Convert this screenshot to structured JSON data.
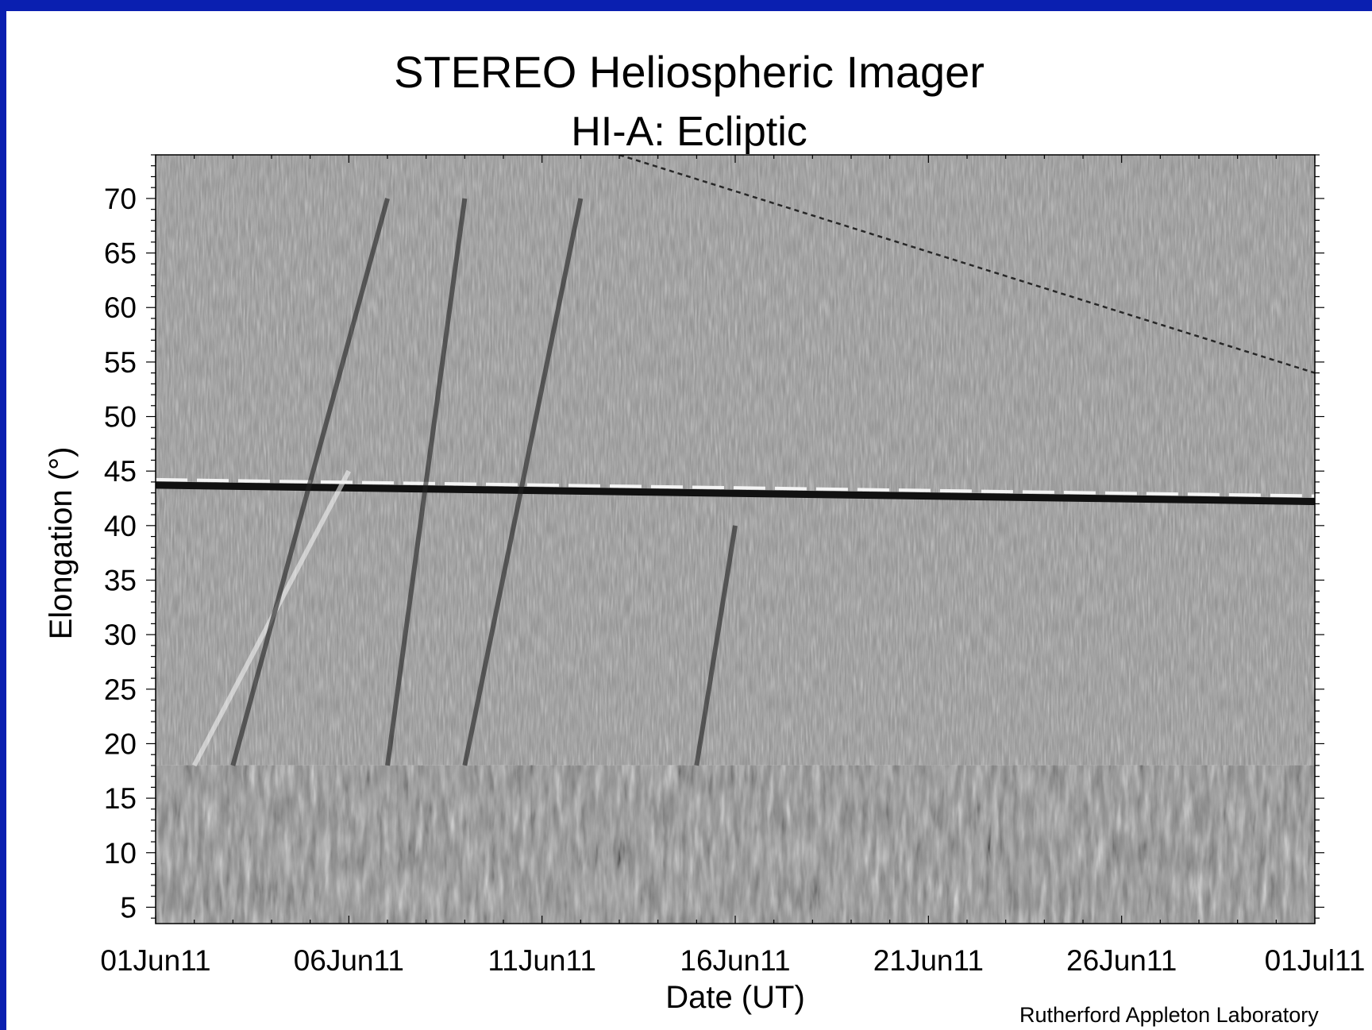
{
  "title": "STEREO Heliospheric Imager",
  "subtitle": "HI-A: Ecliptic",
  "credit": "Rutherford Appleton Laboratory",
  "colors": {
    "background": "#0a1fb0",
    "frame": "#ffffff",
    "plot_mid_gray": "#8c8c8c"
  },
  "chart_data": {
    "type": "heatmap",
    "title": "STEREO Heliospheric Imager",
    "subtitle": "HI-A: Ecliptic",
    "xlabel": "Date (UT)",
    "ylabel": "Elongation (°)",
    "x_range": [
      "01Jun11",
      "01Jul11"
    ],
    "ylim": [
      3.5,
      74
    ],
    "x_ticks": [
      "01Jun11",
      "06Jun11",
      "11Jun11",
      "16Jun11",
      "21Jun11",
      "26Jun11",
      "01Jul11"
    ],
    "y_ticks": [
      "5",
      "10",
      "15",
      "20",
      "25",
      "30",
      "35",
      "40",
      "45",
      "50",
      "55",
      "60",
      "65",
      "70"
    ],
    "colormap": "grayscale",
    "instrument_boundary_elongation": 18,
    "horizontal_band_elongation": [
      44,
      42.5
    ],
    "features": [
      {
        "name": "Bright bright-dark streak",
        "start_date": "02Jun11",
        "start_elongation": 18,
        "end_date": "06Jun11",
        "end_elongation": 45
      },
      {
        "name": "Dark streak",
        "start_date": "03Jun11",
        "start_elongation": 18,
        "end_date": "07Jun11",
        "end_elongation": 70
      },
      {
        "name": "Dark streak",
        "start_date": "07Jun11",
        "start_elongation": 18,
        "end_date": "09Jun11",
        "end_elongation": 70
      },
      {
        "name": "Dark streak",
        "start_date": "09Jun11",
        "start_elongation": 18,
        "end_date": "12Jun11",
        "end_elongation": 70
      },
      {
        "name": "Dark streak",
        "start_date": "15Jun11",
        "start_elongation": 18,
        "end_date": "16Jun11",
        "end_elongation": 40
      },
      {
        "name": "Planet track",
        "start_date": "13Jun11",
        "start_elongation": 74,
        "end_date": "01Jul11",
        "end_elongation": 54
      }
    ]
  }
}
